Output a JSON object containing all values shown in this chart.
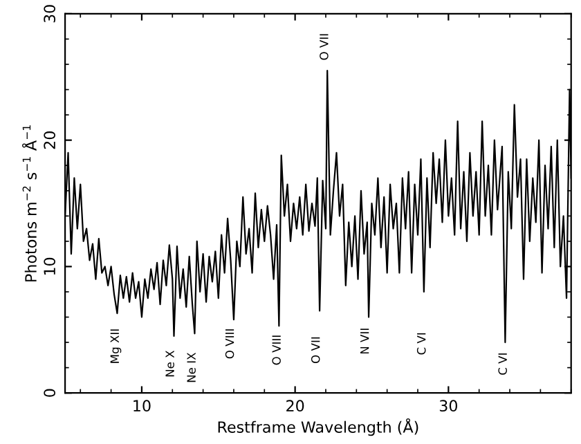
{
  "chart_data": {
    "type": "line",
    "xlabel": "Restframe Wavelength (Å)",
    "ylabel": "Photons m$^{−2}$ s$^{−1}$ Å$^{−1}$",
    "xlim": [
      5,
      38
    ],
    "ylim": [
      0,
      30
    ],
    "xticks": [
      10,
      20,
      30
    ],
    "yticks": [
      0,
      10,
      20,
      30
    ],
    "grid": false,
    "marker": "none",
    "line_style": "solid",
    "series": [
      {
        "color": "#000000",
        "x": [
          5.0,
          5.2,
          5.4,
          5.6,
          5.8,
          6.0,
          6.2,
          6.4,
          6.6,
          6.8,
          7.0,
          7.2,
          7.4,
          7.6,
          7.8,
          8.0,
          8.2,
          8.4,
          8.6,
          8.8,
          9.0,
          9.2,
          9.4,
          9.6,
          9.8,
          10.0,
          10.2,
          10.4,
          10.6,
          10.8,
          11.0,
          11.2,
          11.4,
          11.6,
          11.8,
          12.0,
          12.1,
          12.3,
          12.5,
          12.7,
          12.9,
          13.1,
          13.3,
          13.45,
          13.6,
          13.8,
          14.0,
          14.2,
          14.4,
          14.6,
          14.8,
          15.0,
          15.2,
          15.4,
          15.6,
          15.8,
          16.0,
          16.2,
          16.4,
          16.6,
          16.8,
          17.0,
          17.2,
          17.4,
          17.6,
          17.8,
          18.0,
          18.2,
          18.4,
          18.6,
          18.8,
          18.95,
          19.1,
          19.3,
          19.5,
          19.7,
          19.9,
          20.1,
          20.3,
          20.5,
          20.7,
          20.9,
          21.1,
          21.3,
          21.45,
          21.6,
          21.8,
          22.0,
          22.1,
          22.3,
          22.5,
          22.7,
          22.9,
          23.1,
          23.3,
          23.5,
          23.7,
          23.9,
          24.1,
          24.3,
          24.5,
          24.7,
          24.8,
          25.0,
          25.2,
          25.4,
          25.6,
          25.8,
          26.0,
          26.2,
          26.4,
          26.6,
          26.8,
          27.0,
          27.2,
          27.4,
          27.6,
          27.8,
          28.0,
          28.2,
          28.4,
          28.6,
          28.8,
          29.0,
          29.2,
          29.4,
          29.6,
          29.8,
          30.0,
          30.2,
          30.4,
          30.6,
          30.8,
          31.0,
          31.2,
          31.4,
          31.6,
          31.8,
          32.0,
          32.2,
          32.4,
          32.6,
          32.8,
          33.0,
          33.2,
          33.5,
          33.7,
          33.9,
          34.1,
          34.3,
          34.5,
          34.7,
          34.9,
          35.1,
          35.3,
          35.5,
          35.7,
          35.9,
          36.1,
          36.3,
          36.5,
          36.7,
          36.9,
          37.1,
          37.3,
          37.5,
          37.7,
          37.9,
          38.0
        ],
        "values": [
          14,
          19,
          11,
          17,
          13,
          16.5,
          12,
          13,
          10.5,
          11.8,
          9,
          12.2,
          9.5,
          10,
          8.5,
          10,
          7.8,
          6.3,
          9.3,
          7.5,
          9.2,
          7.2,
          9.5,
          7.5,
          8.8,
          6.0,
          9.0,
          7.5,
          9.8,
          8.2,
          10.3,
          7.0,
          10.5,
          8.5,
          11.7,
          9.0,
          4.5,
          11.6,
          7.5,
          9.8,
          6.8,
          10.8,
          7.0,
          4.7,
          12.0,
          8.0,
          11.0,
          7.2,
          10.8,
          8.8,
          11.2,
          7.5,
          12.5,
          9.5,
          13.8,
          10.5,
          5.8,
          12.0,
          10.0,
          15.5,
          11.0,
          13.0,
          9.5,
          15.8,
          11.5,
          14.5,
          12.0,
          14.8,
          12.5,
          9.0,
          13.3,
          5.3,
          18.8,
          14.0,
          16.5,
          12.0,
          15.0,
          13.0,
          15.5,
          12.5,
          16.5,
          12.8,
          15.0,
          13.2,
          17.0,
          6.5,
          16.8,
          13.0,
          25.5,
          12.5,
          16.0,
          19.0,
          14.0,
          16.5,
          8.5,
          13.5,
          10.0,
          14.0,
          9.0,
          16.0,
          11.0,
          13.5,
          6.0,
          15.0,
          12.5,
          17.0,
          11.5,
          15.5,
          9.5,
          16.5,
          13.0,
          15.0,
          9.5,
          17.0,
          13.0,
          17.5,
          9.5,
          16.5,
          12.5,
          18.5,
          8.0,
          17.0,
          11.5,
          19.0,
          15.0,
          18.5,
          13.5,
          20.0,
          14.0,
          17.0,
          12.5,
          21.5,
          13.0,
          17.5,
          12.0,
          19.0,
          14.0,
          17.5,
          12.5,
          21.5,
          14.0,
          18.0,
          12.5,
          20.0,
          14.5,
          19.5,
          4.0,
          17.5,
          13.0,
          22.8,
          15.5,
          18.5,
          9.0,
          18.5,
          12.0,
          17.0,
          13.5,
          20.0,
          9.5,
          18.0,
          13.0,
          19.5,
          11.5,
          20.0,
          10.0,
          14.0,
          7.5,
          24.0,
          17.0
        ]
      }
    ],
    "annotations": [
      "Mg XII",
      "Ne X",
      "Ne IX",
      "O VIII",
      "O VIII",
      "O VII",
      "N VII",
      "C VI",
      "C VI",
      "O VII"
    ]
  }
}
